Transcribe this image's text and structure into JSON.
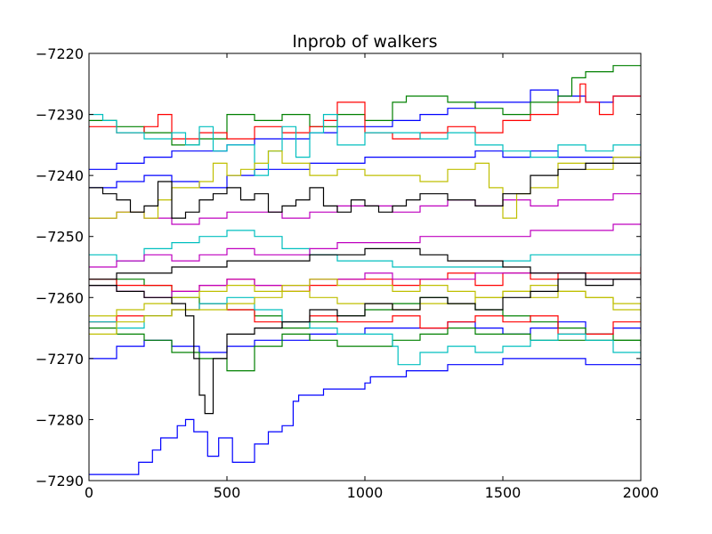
{
  "chart_data": {
    "type": "line",
    "title": "lnprob of walkers",
    "xlabel": "",
    "ylabel": "",
    "xlim": [
      0,
      2000
    ],
    "ylim": [
      -7290,
      -7220
    ],
    "x_ticks": [
      0,
      500,
      1000,
      1500,
      2000
    ],
    "x_tick_labels": [
      "0",
      "500",
      "1000",
      "1500",
      "2000"
    ],
    "y_ticks": [
      -7290,
      -7280,
      -7270,
      -7260,
      -7250,
      -7240,
      -7230,
      -7220
    ],
    "y_tick_labels": [
      "−7290",
      "−7280",
      "−7270",
      "−7260",
      "−7250",
      "−7240",
      "−7230",
      "−7220"
    ],
    "grid": false,
    "legend": "none",
    "series": [
      {
        "color": "#0000ff",
        "x": [
          0,
          170,
          180,
          230,
          260,
          320,
          350,
          380,
          430,
          470,
          520,
          600,
          650,
          700,
          740,
          760,
          850,
          1000,
          1020,
          1100,
          1150,
          1200,
          1300,
          1400,
          1500,
          1600,
          1700,
          1800,
          1900,
          2000
        ],
        "y": [
          -7289,
          -7289,
          -7287,
          -7285,
          -7283,
          -7281,
          -7280,
          -7282,
          -7286,
          -7283,
          -7287,
          -7284,
          -7282,
          -7281,
          -7277,
          -7276,
          -7275,
          -7274,
          -7273,
          -7273,
          -7272,
          -7272,
          -7271,
          -7271,
          -7270,
          -7270,
          -7270,
          -7271,
          -7271,
          -7271
        ]
      },
      {
        "color": "#0000ff",
        "x": [
          0,
          100,
          200,
          300,
          400,
          500,
          600,
          700,
          800,
          900,
          1000,
          1100,
          1200,
          1300,
          1400,
          1500,
          1600,
          1700,
          1800,
          1900,
          2000
        ],
        "y": [
          -7270,
          -7268,
          -7267,
          -7268,
          -7269,
          -7268,
          -7267,
          -7267,
          -7266,
          -7266,
          -7265,
          -7265,
          -7265,
          -7264,
          -7265,
          -7266,
          -7265,
          -7264,
          -7266,
          -7265,
          -7266
        ]
      },
      {
        "color": "#0000ff",
        "x": [
          0,
          100,
          200,
          300,
          400,
          500,
          600,
          700,
          800,
          900,
          1000,
          1100,
          1200,
          1300,
          1400,
          1500,
          1600,
          1700,
          1800,
          1900,
          2000
        ],
        "y": [
          -7239,
          -7238,
          -7237,
          -7236,
          -7236,
          -7235,
          -7234,
          -7234,
          -7233,
          -7232,
          -7232,
          -7231,
          -7230,
          -7229,
          -7228,
          -7228,
          -7226,
          -7227,
          -7228,
          -7227,
          -7227
        ]
      },
      {
        "color": "#0000ff",
        "x": [
          0,
          100,
          200,
          300,
          400,
          500,
          600,
          700,
          800,
          900,
          1000,
          1100,
          1200,
          1300,
          1400,
          1500,
          1600,
          1700,
          1800,
          1900,
          2000
        ],
        "y": [
          -7242,
          -7241,
          -7240,
          -7241,
          -7242,
          -7240,
          -7239,
          -7239,
          -7238,
          -7238,
          -7237,
          -7237,
          -7237,
          -7237,
          -7236,
          -7237,
          -7236,
          -7237,
          -7237,
          -7237,
          -7236
        ]
      },
      {
        "color": "#008000",
        "x": [
          0,
          100,
          200,
          300,
          400,
          500,
          600,
          700,
          800,
          900,
          1000,
          1100,
          1150,
          1200,
          1300,
          1400,
          1500,
          1600,
          1700,
          1750,
          1800,
          1900,
          2000
        ],
        "y": [
          -7231,
          -7232,
          -7233,
          -7235,
          -7234,
          -7230,
          -7231,
          -7230,
          -7232,
          -7230,
          -7231,
          -7228,
          -7227,
          -7227,
          -7228,
          -7229,
          -7230,
          -7228,
          -7227,
          -7224,
          -7223,
          -7222,
          -7222
        ]
      },
      {
        "color": "#008000",
        "x": [
          0,
          100,
          200,
          300,
          400,
          500,
          600,
          700,
          800,
          900,
          1000,
          1100,
          1200,
          1300,
          1400,
          1500,
          1600,
          1700,
          1800,
          1900,
          2000
        ],
        "y": [
          -7258,
          -7257,
          -7258,
          -7260,
          -7261,
          -7262,
          -7263,
          -7265,
          -7264,
          -7263,
          -7262,
          -7261,
          -7260,
          -7261,
          -7262,
          -7263,
          -7264,
          -7265,
          -7266,
          -7267,
          -7268
        ]
      },
      {
        "color": "#008000",
        "x": [
          0,
          100,
          200,
          300,
          400,
          500,
          600,
          700,
          800,
          900,
          1000,
          1100,
          1200,
          1300,
          1400,
          1500,
          1600,
          1700,
          1800,
          1900,
          2000
        ],
        "y": [
          -7265,
          -7266,
          -7267,
          -7269,
          -7270,
          -7272,
          -7268,
          -7266,
          -7267,
          -7268,
          -7268,
          -7267,
          -7266,
          -7265,
          -7266,
          -7266,
          -7267,
          -7267,
          -7267,
          -7267,
          -7267
        ]
      },
      {
        "color": "#ff0000",
        "x": [
          0,
          100,
          200,
          250,
          300,
          400,
          500,
          600,
          700,
          800,
          850,
          900,
          950,
          1000,
          1100,
          1200,
          1300,
          1400,
          1500,
          1600,
          1700,
          1780,
          1800,
          1850,
          1900,
          2000
        ],
        "y": [
          -7232,
          -7233,
          -7232,
          -7230,
          -7234,
          -7233,
          -7234,
          -7232,
          -7233,
          -7232,
          -7231,
          -7228,
          -7228,
          -7233,
          -7234,
          -7233,
          -7232,
          -7233,
          -7231,
          -7230,
          -7228,
          -7225,
          -7228,
          -7230,
          -7227,
          -7227
        ]
      },
      {
        "color": "#ff0000",
        "x": [
          0,
          100,
          200,
          300,
          400,
          500,
          600,
          700,
          800,
          900,
          1000,
          1100,
          1200,
          1300,
          1400,
          1500,
          1600,
          1700,
          1800,
          1900,
          2000
        ],
        "y": [
          -7257,
          -7258,
          -7258,
          -7259,
          -7258,
          -7257,
          -7258,
          -7259,
          -7258,
          -7257,
          -7257,
          -7258,
          -7257,
          -7256,
          -7258,
          -7256,
          -7257,
          -7256,
          -7256,
          -7256,
          -7255
        ]
      },
      {
        "color": "#ff0000",
        "x": [
          0,
          100,
          200,
          300,
          400,
          500,
          600,
          700,
          800,
          900,
          1000,
          1100,
          1200,
          1300,
          1400,
          1500,
          1600,
          1700,
          1800,
          1900,
          2000
        ],
        "y": [
          -7264,
          -7263,
          -7263,
          -7262,
          -7261,
          -7262,
          -7264,
          -7264,
          -7263,
          -7264,
          -7264,
          -7263,
          -7265,
          -7264,
          -7263,
          -7264,
          -7263,
          -7266,
          -7266,
          -7264,
          -7264
        ]
      },
      {
        "color": "#00bfbf",
        "x": [
          0,
          50,
          100,
          200,
          300,
          350,
          400,
          450,
          500,
          600,
          650,
          700,
          750,
          800,
          850,
          900,
          1000,
          1100,
          1200,
          1300,
          1400,
          1500,
          1600,
          1700,
          1800,
          1900,
          2000
        ],
        "y": [
          -7230,
          -7231,
          -7233,
          -7234,
          -7233,
          -7235,
          -7232,
          -7236,
          -7235,
          -7240,
          -7236,
          -7232,
          -7237,
          -7233,
          -7230,
          -7235,
          -7233,
          -7233,
          -7234,
          -7233,
          -7235,
          -7236,
          -7237,
          -7235,
          -7236,
          -7235,
          -7235
        ]
      },
      {
        "color": "#00bfbf",
        "x": [
          0,
          100,
          200,
          300,
          400,
          500,
          600,
          700,
          800,
          900,
          1000,
          1100,
          1200,
          1300,
          1400,
          1500,
          1600,
          1700,
          1800,
          1900,
          2000
        ],
        "y": [
          -7253,
          -7254,
          -7252,
          -7251,
          -7250,
          -7249,
          -7250,
          -7252,
          -7253,
          -7254,
          -7254,
          -7255,
          -7255,
          -7255,
          -7255,
          -7254,
          -7253,
          -7253,
          -7253,
          -7253,
          -7252
        ]
      },
      {
        "color": "#00bfbf",
        "x": [
          0,
          100,
          200,
          300,
          400,
          500,
          600,
          700,
          800,
          900,
          1000,
          1100,
          1120,
          1200,
          1300,
          1400,
          1500,
          1600,
          1700,
          1800,
          1900,
          2000
        ],
        "y": [
          -7264,
          -7265,
          -7263,
          -7262,
          -7261,
          -7260,
          -7262,
          -7264,
          -7265,
          -7266,
          -7266,
          -7268,
          -7271,
          -7269,
          -7268,
          -7269,
          -7268,
          -7267,
          -7266,
          -7267,
          -7269,
          -7270
        ]
      },
      {
        "color": "#bf00bf",
        "x": [
          0,
          100,
          200,
          300,
          400,
          500,
          600,
          700,
          800,
          900,
          1000,
          1100,
          1200,
          1300,
          1400,
          1500,
          1600,
          1700,
          1800,
          1900,
          2000
        ],
        "y": [
          -7247,
          -7246,
          -7247,
          -7248,
          -7247,
          -7246,
          -7246,
          -7247,
          -7246,
          -7245,
          -7245,
          -7246,
          -7245,
          -7244,
          -7245,
          -7244,
          -7245,
          -7244,
          -7244,
          -7243,
          -7243
        ]
      },
      {
        "color": "#bf00bf",
        "x": [
          0,
          100,
          200,
          300,
          400,
          500,
          600,
          700,
          800,
          900,
          1000,
          1100,
          1200,
          1300,
          1400,
          1500,
          1600,
          1700,
          1800,
          1900,
          2000
        ],
        "y": [
          -7255,
          -7254,
          -7253,
          -7254,
          -7253,
          -7252,
          -7253,
          -7253,
          -7252,
          -7251,
          -7251,
          -7251,
          -7250,
          -7250,
          -7250,
          -7250,
          -7249,
          -7249,
          -7249,
          -7248,
          -7248
        ]
      },
      {
        "color": "#bf00bf",
        "x": [
          0,
          100,
          200,
          300,
          400,
          500,
          600,
          700,
          800,
          900,
          1000,
          1100,
          1200,
          1300,
          1400,
          1500,
          1600,
          1700,
          1800,
          1900,
          2000
        ],
        "y": [
          -7258,
          -7259,
          -7260,
          -7259,
          -7258,
          -7257,
          -7258,
          -7258,
          -7257,
          -7257,
          -7256,
          -7257,
          -7257,
          -7257,
          -7256,
          -7256,
          -7256,
          -7256,
          -7257,
          -7257,
          -7257
        ]
      },
      {
        "color": "#bfbf00",
        "x": [
          0,
          100,
          200,
          250,
          300,
          400,
          450,
          500,
          550,
          600,
          650,
          700,
          800,
          900,
          1000,
          1100,
          1200,
          1300,
          1400,
          1450,
          1500,
          1550,
          1600,
          1700,
          1800,
          1900,
          2000
        ],
        "y": [
          -7247,
          -7246,
          -7247,
          -7244,
          -7242,
          -7241,
          -7238,
          -7240,
          -7239,
          -7238,
          -7236,
          -7238,
          -7240,
          -7239,
          -7240,
          -7240,
          -7241,
          -7239,
          -7238,
          -7242,
          -7247,
          -7243,
          -7242,
          -7238,
          -7239,
          -7237,
          -7237
        ]
      },
      {
        "color": "#bfbf00",
        "x": [
          0,
          100,
          200,
          300,
          400,
          500,
          600,
          700,
          800,
          900,
          1000,
          1100,
          1200,
          1300,
          1400,
          1500,
          1600,
          1700,
          1800,
          1900,
          2000
        ],
        "y": [
          -7263,
          -7262,
          -7261,
          -7260,
          -7259,
          -7258,
          -7259,
          -7258,
          -7257,
          -7258,
          -7258,
          -7259,
          -7258,
          -7259,
          -7260,
          -7259,
          -7260,
          -7259,
          -7260,
          -7262,
          -7263
        ]
      },
      {
        "color": "#bfbf00",
        "x": [
          0,
          100,
          200,
          300,
          400,
          500,
          600,
          700,
          800,
          900,
          1000,
          1100,
          1200,
          1300,
          1400,
          1500,
          1600,
          1700,
          1800,
          1900,
          2000
        ],
        "y": [
          -7266,
          -7264,
          -7263,
          -7262,
          -7262,
          -7261,
          -7260,
          -7259,
          -7260,
          -7261,
          -7261,
          -7262,
          -7261,
          -7261,
          -7260,
          -7259,
          -7258,
          -7259,
          -7260,
          -7261,
          -7262
        ]
      },
      {
        "color": "#000000",
        "x": [
          0,
          50,
          100,
          150,
          200,
          250,
          300,
          350,
          400,
          450,
          500,
          550,
          600,
          650,
          700,
          750,
          800,
          850,
          900,
          950,
          1000,
          1050,
          1100,
          1150,
          1200,
          1300,
          1400,
          1500,
          1600,
          1700,
          1800,
          1900,
          2000
        ],
        "y": [
          -7242,
          -7243,
          -7244,
          -7246,
          -7245,
          -7241,
          -7247,
          -7246,
          -7244,
          -7243,
          -7242,
          -7244,
          -7243,
          -7246,
          -7245,
          -7244,
          -7242,
          -7245,
          -7246,
          -7244,
          -7245,
          -7246,
          -7245,
          -7244,
          -7243,
          -7244,
          -7245,
          -7243,
          -7240,
          -7239,
          -7238,
          -7238,
          -7237
        ]
      },
      {
        "color": "#000000",
        "x": [
          0,
          100,
          200,
          300,
          350,
          380,
          400,
          420,
          450,
          500,
          600,
          700,
          800,
          900,
          1000,
          1100,
          1200,
          1300,
          1400,
          1500,
          1600,
          1700,
          1800,
          1900,
          2000
        ],
        "y": [
          -7258,
          -7259,
          -7260,
          -7261,
          -7263,
          -7270,
          -7276,
          -7279,
          -7270,
          -7266,
          -7265,
          -7264,
          -7262,
          -7263,
          -7261,
          -7262,
          -7260,
          -7261,
          -7262,
          -7260,
          -7259,
          -7257,
          -7258,
          -7257,
          -7257
        ]
      },
      {
        "color": "#000000",
        "x": [
          0,
          100,
          200,
          300,
          400,
          500,
          600,
          700,
          800,
          900,
          1000,
          1100,
          1200,
          1300,
          1400,
          1500,
          1600,
          1700,
          1800,
          1900,
          2000
        ],
        "y": [
          -7257,
          -7256,
          -7256,
          -7255,
          -7255,
          -7254,
          -7254,
          -7254,
          -7253,
          -7253,
          -7252,
          -7252,
          -7253,
          -7254,
          -7254,
          -7255,
          -7256,
          -7256,
          -7257,
          -7257,
          -7258
        ]
      }
    ]
  }
}
